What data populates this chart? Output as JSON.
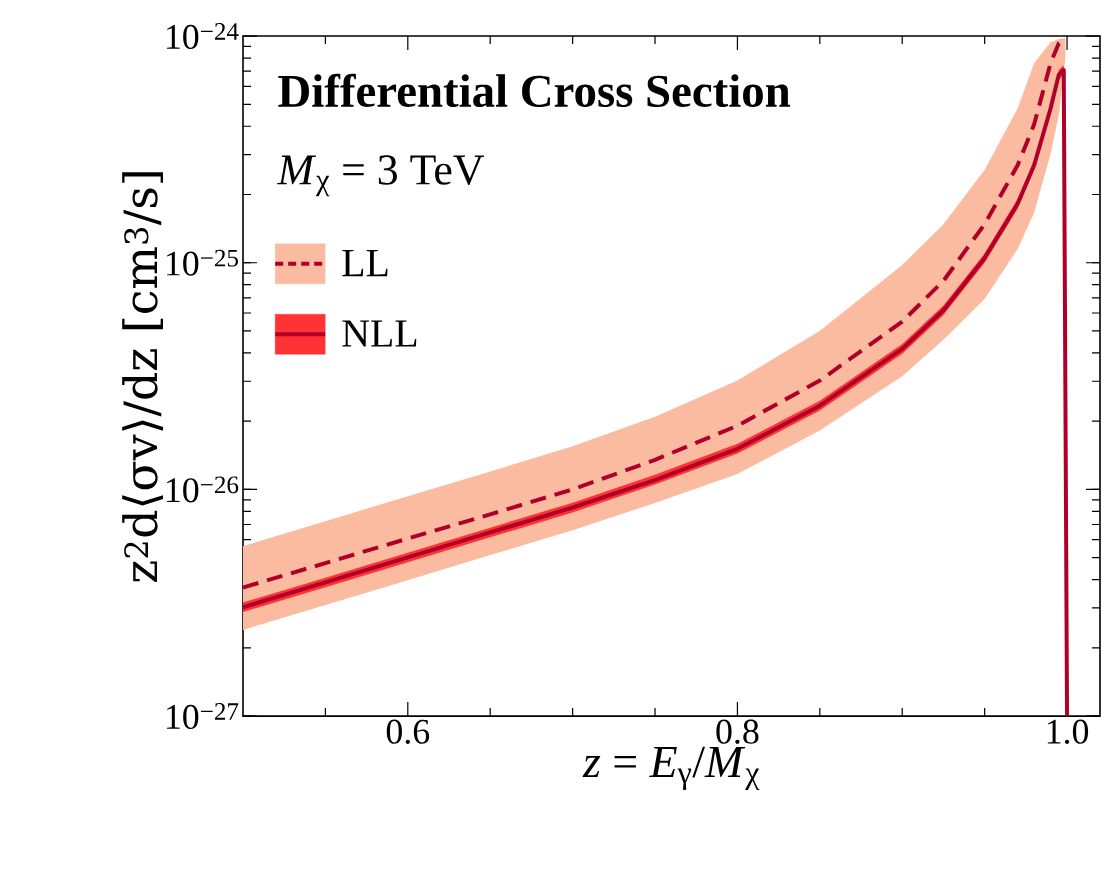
{
  "chart_data": {
    "type": "line",
    "title": "Differential Cross Section",
    "legend_title": "*M*$_{χ}$ = 3 TeV",
    "xlabel": "*z* = *E*$_{γ}$/*M*$_{χ}$",
    "ylabel": "z$^{2}$d⟨σv⟩/dz [cm$^{3}$/s]",
    "log": "y",
    "xlim": [
      0.5,
      1.02
    ],
    "ylim": [
      1e-27,
      1e-24
    ],
    "xticks": [
      {
        "value": 0.6,
        "label": "0.6"
      },
      {
        "value": 0.8,
        "label": "0.8"
      },
      {
        "value": 1.0,
        "label": "1.0"
      }
    ],
    "yticks": [
      {
        "value": 1e-27,
        "label": "10$^{−27}$"
      },
      {
        "value": 1e-26,
        "label": "10$^{−26}$"
      },
      {
        "value": 1e-25,
        "label": "10$^{−25}$"
      },
      {
        "value": 1e-24,
        "label": "10$^{−24}$"
      }
    ],
    "legend": "top left",
    "series": [
      {
        "name": "LL",
        "color": "#b0002a",
        "line_style": "dashed",
        "x": [
          0.5,
          0.55,
          0.6,
          0.65,
          0.7,
          0.75,
          0.8,
          0.85,
          0.9,
          0.925,
          0.95,
          0.97,
          0.98,
          0.99,
          0.995,
          0.999
        ],
        "values": [
          3.69e-27,
          4.73e-27,
          6.07e-27,
          7.76e-27,
          1e-26,
          1.35e-26,
          1.91e-26,
          3.02e-26,
          5.5e-26,
          8.32e-26,
          1.48e-25,
          2.69e-25,
          4.07e-25,
          7.59e-25,
          9.3e-25,
          9.7e-25
        ],
        "lower": [
          2.4e-27,
          3.09e-27,
          3.98e-27,
          5.13e-27,
          6.61e-27,
          8.71e-27,
          1.17e-26,
          1.82e-26,
          3.16e-26,
          4.57e-26,
          6.92e-26,
          1.15e-25,
          1.66e-25,
          3.02e-25,
          4.47e-25,
          8e-25
        ],
        "upper": [
          5.62e-27,
          7.24e-27,
          9.33e-27,
          1.2e-26,
          1.55e-26,
          2.09e-26,
          3.02e-26,
          5.01e-26,
          9.77e-26,
          1.48e-25,
          2.57e-25,
          4.79e-25,
          7.59e-25,
          9.4e-25,
          9.7e-25,
          9.8e-25
        ]
      },
      {
        "name": "NLL",
        "color": "#b0002a",
        "line_style": "solid",
        "x": [
          0.5,
          0.55,
          0.6,
          0.65,
          0.7,
          0.75,
          0.8,
          0.85,
          0.9,
          0.925,
          0.95,
          0.97,
          0.98,
          0.99,
          0.995,
          0.998,
          1.0
        ],
        "values": [
          3.02e-27,
          3.89e-27,
          5.01e-27,
          6.46e-27,
          8.32e-27,
          1.1e-26,
          1.51e-26,
          2.34e-26,
          4.17e-26,
          6.17e-26,
          1.05e-25,
          1.82e-25,
          2.69e-25,
          4.79e-25,
          6.76e-25,
          7.08e-25,
          1e-27
        ],
        "lower": [
          2.88e-27,
          3.7e-27,
          4.77e-27,
          6.15e-27,
          7.92e-27,
          1.05e-26,
          1.44e-26,
          2.23e-26,
          3.97e-26,
          5.88e-26,
          1e-25,
          1.73e-25,
          2.56e-25,
          4.56e-25,
          6.44e-25,
          6.74e-25,
          null
        ],
        "upper": [
          3.17e-27,
          4.08e-27,
          5.26e-27,
          6.78e-27,
          8.74e-27,
          1.16e-26,
          1.59e-26,
          2.46e-26,
          4.38e-26,
          6.48e-26,
          1.1e-25,
          1.91e-25,
          2.82e-25,
          5.03e-25,
          7.1e-25,
          7.43e-25,
          null
        ]
      }
    ]
  }
}
